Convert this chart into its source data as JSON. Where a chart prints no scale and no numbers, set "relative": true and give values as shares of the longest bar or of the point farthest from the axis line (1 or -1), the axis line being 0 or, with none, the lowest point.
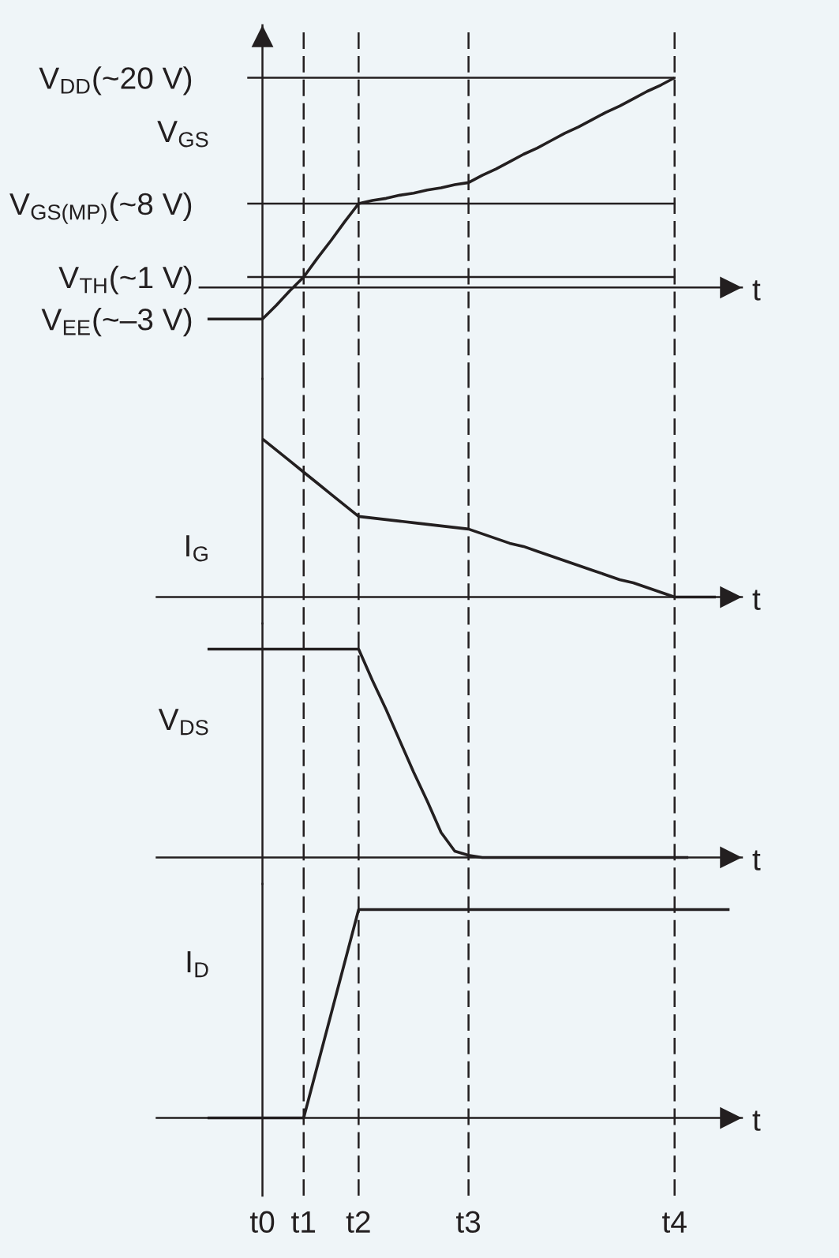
{
  "chart_data": [
    {
      "type": "line",
      "xlabel": "t",
      "ylabel": "V$_{GS}$",
      "categories": [
        null,
        null,
        null,
        null,
        null,
        null,
        null,
        "t0",
        null,
        null,
        "t1",
        null,
        null,
        null,
        "t2",
        null,
        null,
        null,
        null,
        null,
        null,
        null,
        "t3",
        null,
        null,
        null,
        null,
        null,
        null,
        null,
        null,
        null,
        null,
        null,
        null,
        null,
        null,
        "t4",
        null,
        null,
        null,
        null
      ],
      "series": [
        {
          "color": "#231f20",
          "values": [
            null,
            null,
            null,
            -3,
            -3,
            -3,
            -3,
            -3,
            -1.7,
            -0.3,
            1,
            2.8,
            4.5,
            6.3,
            8,
            8.3,
            8.5,
            8.8,
            9,
            9.3,
            9.5,
            9.8,
            10,
            10.7,
            11.3,
            12,
            12.7,
            13.3,
            14,
            14.7,
            15.3,
            16,
            16.7,
            17.3,
            18,
            18.7,
            19.3,
            20,
            null,
            null,
            null,
            null
          ]
        }
      ],
      "ylim": [
        -8.7,
        25
      ],
      "yticks": [
        {
          "value": 20,
          "label": "V$_{DD}$(~20 V)"
        },
        {
          "value": 8,
          "label": "V$_{GS(MP)}$(~8 V)"
        },
        {
          "value": 1,
          "label": "V$_{TH}$(~1 V)"
        },
        {
          "value": -3,
          "label": "V$_{EE}$(~–3 V)"
        }
      ],
      "ref_lines": [
        {
          "axis": "y",
          "value": 20,
          "color": "#231f20"
        },
        {
          "axis": "y",
          "value": 8,
          "color": "#231f20"
        },
        {
          "axis": "y",
          "value": 1,
          "color": "#231f20"
        },
        {
          "axis": "x",
          "value": "t1",
          "color": "#231f20",
          "line_style": "dashed"
        },
        {
          "axis": "x",
          "value": "t2",
          "color": "#231f20",
          "line_style": "dashed"
        },
        {
          "axis": "x",
          "value": "t3",
          "color": "#231f20",
          "line_style": "dashed"
        },
        {
          "axis": "x",
          "value": "t4",
          "color": "#231f20",
          "line_style": "dashed"
        }
      ],
      "tick_labels": "y"
    },
    {
      "type": "line",
      "relative": true,
      "xlabel": "t",
      "ylabel": "I$_{G}$",
      "categories": [
        null,
        null,
        null,
        null,
        null,
        null,
        null,
        "t0",
        null,
        null,
        "t1",
        null,
        null,
        null,
        "t2",
        null,
        null,
        null,
        null,
        null,
        null,
        null,
        "t3",
        null,
        null,
        null,
        null,
        null,
        null,
        null,
        null,
        null,
        null,
        null,
        null,
        null,
        null,
        "t4",
        null,
        null,
        null,
        null
      ],
      "series": [
        {
          "color": "#231f20",
          "values": [
            null,
            null,
            null,
            null,
            null,
            null,
            null,
            1,
            0.93,
            0.86,
            0.79,
            0.72,
            0.65,
            0.58,
            0.51,
            0.5,
            0.49,
            0.48,
            0.47,
            0.46,
            0.45,
            0.44,
            0.43,
            0.4,
            0.37,
            0.34,
            0.32,
            0.29,
            0.26,
            0.23,
            0.2,
            0.17,
            0.14,
            0.11,
            0.09,
            0.06,
            0.03,
            0,
            0,
            0,
            0,
            null
          ]
        }
      ],
      "ref_lines": [
        {
          "axis": "x",
          "value": "t1",
          "color": "#231f20",
          "line_style": "dashed"
        },
        {
          "axis": "x",
          "value": "t2",
          "color": "#231f20",
          "line_style": "dashed"
        },
        {
          "axis": "x",
          "value": "t3",
          "color": "#231f20",
          "line_style": "dashed"
        },
        {
          "axis": "x",
          "value": "t4",
          "color": "#231f20",
          "line_style": "dashed"
        }
      ],
      "tick_labels": false
    },
    {
      "type": "line",
      "relative": true,
      "xlabel": "t",
      "ylabel": "V$_{DS}$",
      "categories": [
        null,
        null,
        null,
        null,
        null,
        null,
        null,
        "t0",
        null,
        null,
        "t1",
        null,
        null,
        null,
        "t2",
        null,
        null,
        null,
        null,
        null,
        null,
        null,
        "t3",
        null,
        null,
        null,
        null,
        null,
        null,
        null,
        null,
        null,
        null,
        null,
        null,
        null,
        null,
        "t4",
        null,
        null,
        null,
        null
      ],
      "series": [
        {
          "color": "#231f20",
          "values": [
            null,
            null,
            null,
            1,
            1,
            1,
            1,
            1,
            1,
            1,
            1,
            1,
            1,
            1,
            1,
            0.85,
            0.71,
            0.56,
            0.41,
            0.27,
            0.12,
            0.03,
            0.01,
            0,
            0,
            0,
            0,
            0,
            0,
            0,
            0,
            0,
            0,
            0,
            0,
            0,
            0,
            0,
            0,
            null,
            null,
            null
          ]
        }
      ],
      "ref_lines": [
        {
          "axis": "x",
          "value": "t1",
          "color": "#231f20",
          "line_style": "dashed"
        },
        {
          "axis": "x",
          "value": "t2",
          "color": "#231f20",
          "line_style": "dashed"
        },
        {
          "axis": "x",
          "value": "t3",
          "color": "#231f20",
          "line_style": "dashed"
        },
        {
          "axis": "x",
          "value": "t4",
          "color": "#231f20",
          "line_style": "dashed"
        }
      ],
      "tick_labels": false
    },
    {
      "type": "line",
      "relative": true,
      "xlabel": "t",
      "ylabel": "I$_{D}$",
      "categories": [
        null,
        null,
        null,
        null,
        null,
        null,
        null,
        "t0",
        null,
        null,
        "t1",
        null,
        null,
        null,
        "t2",
        null,
        null,
        null,
        null,
        null,
        null,
        null,
        "t3",
        null,
        null,
        null,
        null,
        null,
        null,
        null,
        null,
        null,
        null,
        null,
        null,
        null,
        null,
        "t4",
        null,
        null,
        null,
        null
      ],
      "series": [
        {
          "color": "#231f20",
          "values": [
            null,
            null,
            null,
            0,
            0,
            0,
            0,
            0,
            0,
            0,
            0,
            0.25,
            0.5,
            0.75,
            1,
            1,
            1,
            1,
            1,
            1,
            1,
            1,
            1,
            1,
            1,
            1,
            1,
            1,
            1,
            1,
            1,
            1,
            1,
            1,
            1,
            1,
            1,
            1,
            1,
            1,
            1,
            1
          ]
        }
      ],
      "ref_lines": [
        {
          "axis": "x",
          "value": "t1",
          "color": "#231f20",
          "line_style": "dashed"
        },
        {
          "axis": "x",
          "value": "t2",
          "color": "#231f20",
          "line_style": "dashed"
        },
        {
          "axis": "x",
          "value": "t3",
          "color": "#231f20",
          "line_style": "dashed"
        },
        {
          "axis": "x",
          "value": "t4",
          "color": "#231f20",
          "line_style": "dashed"
        }
      ],
      "tick_labels": "x"
    }
  ]
}
